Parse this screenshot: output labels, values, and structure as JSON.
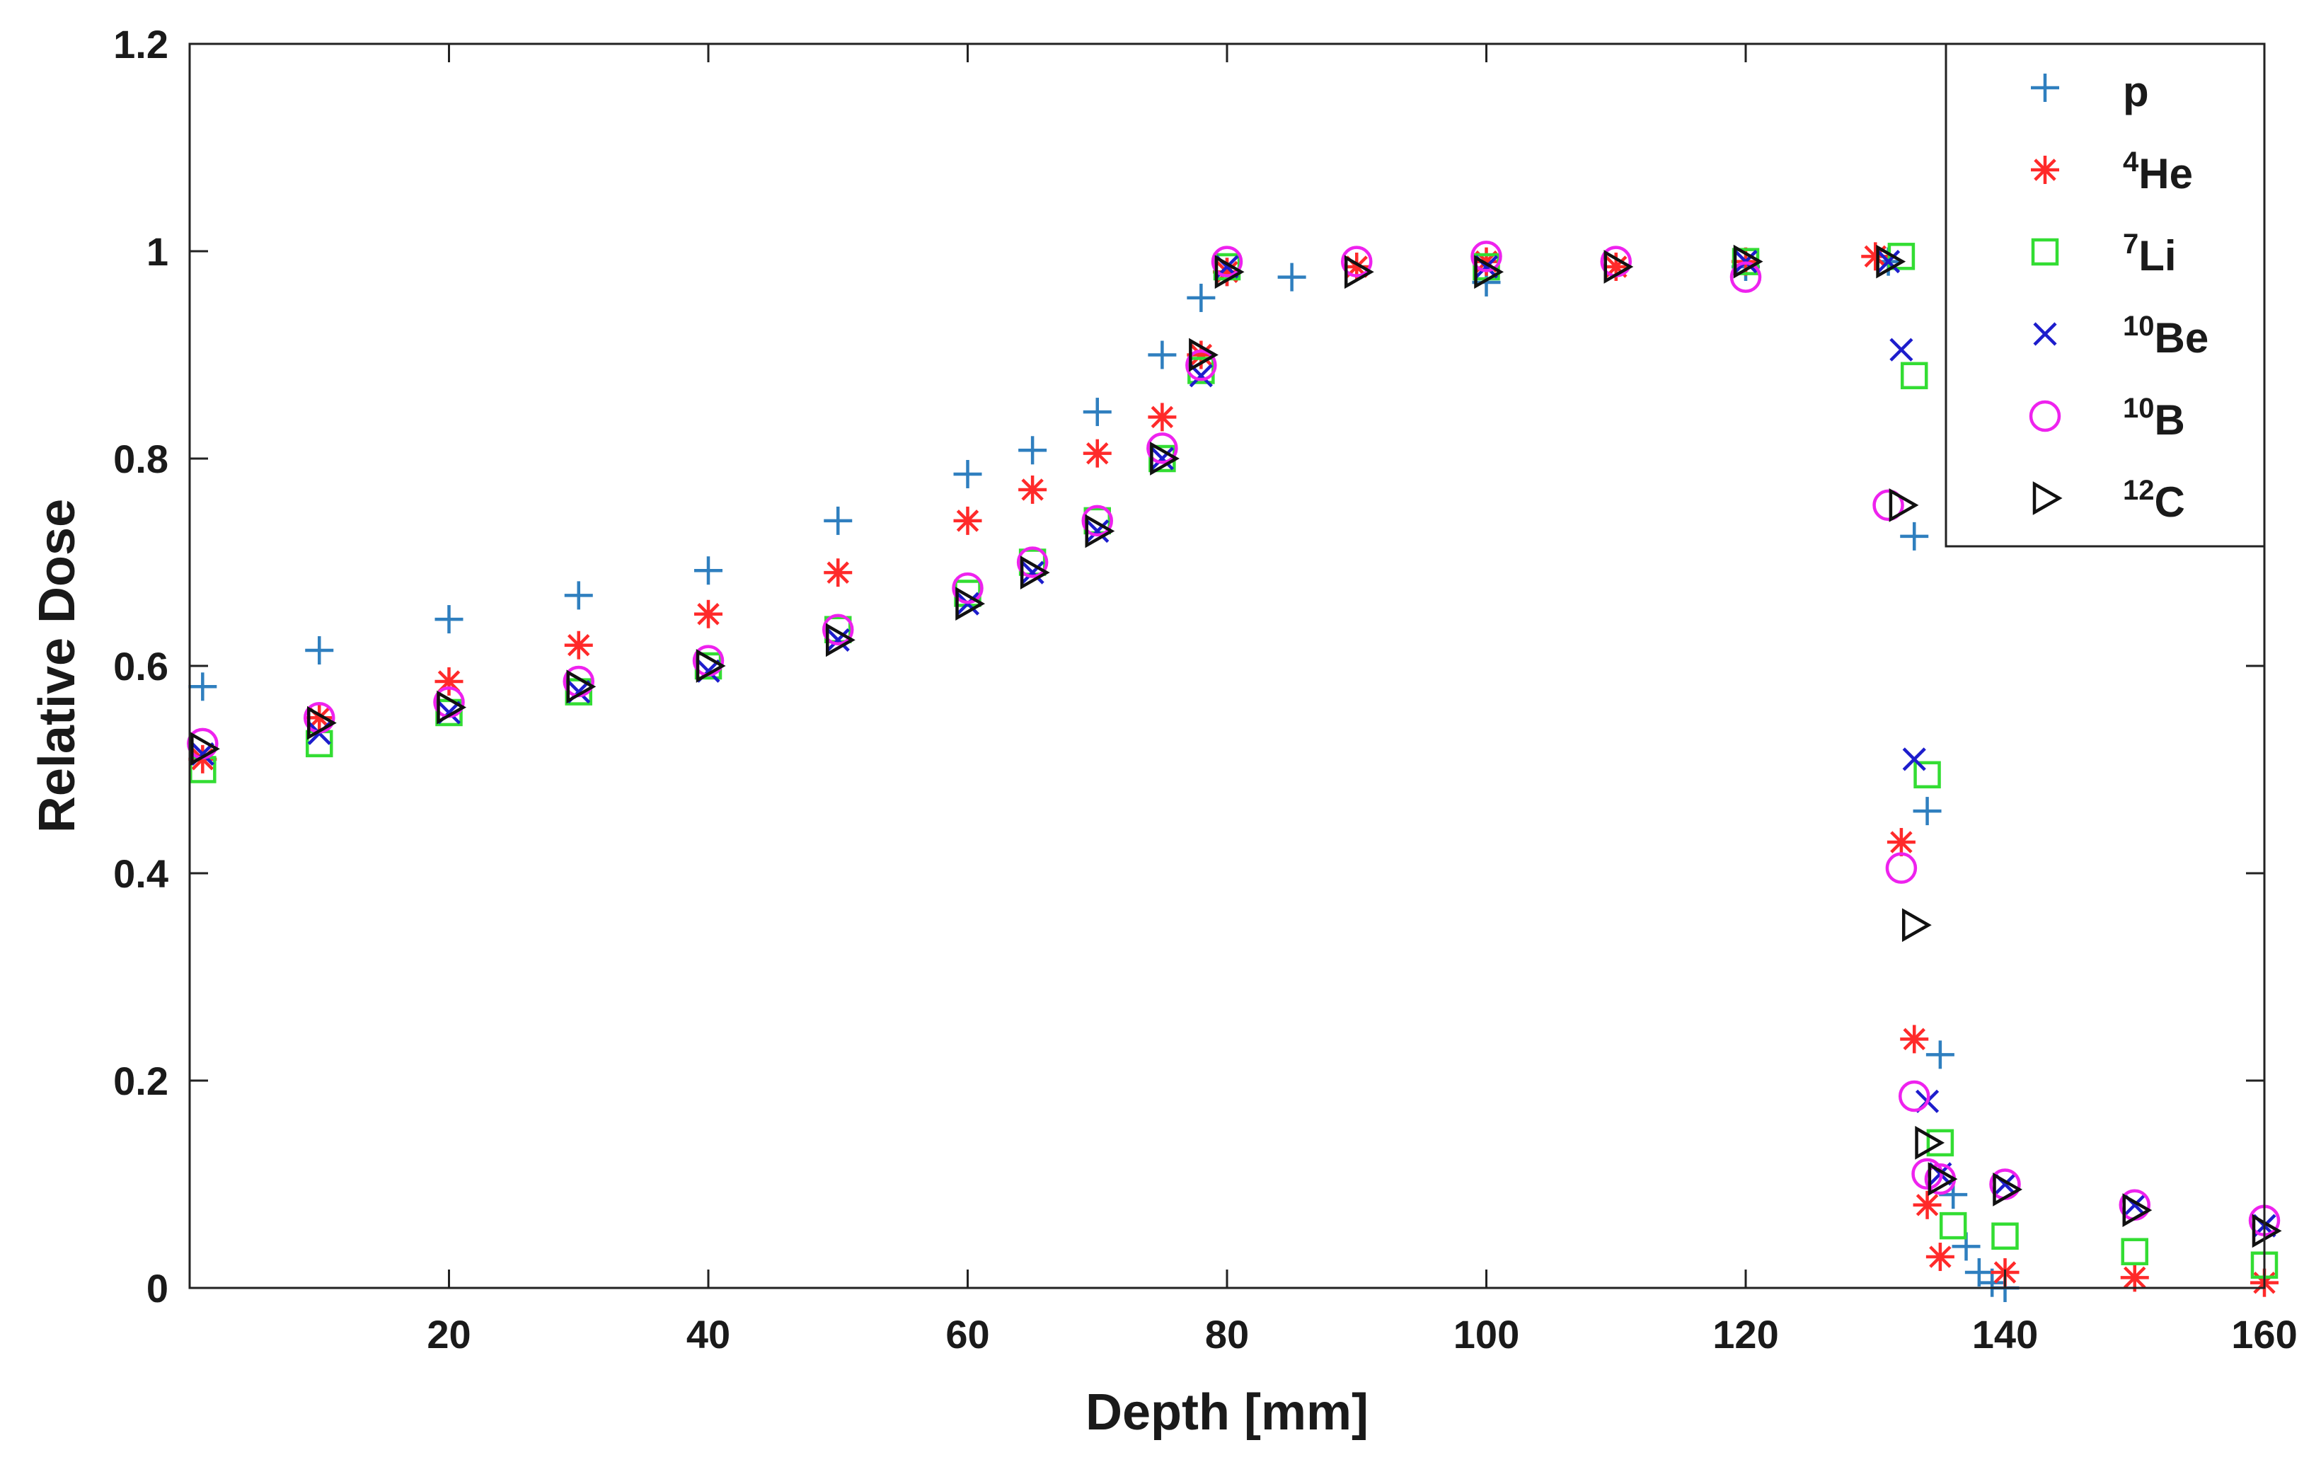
{
  "chart_data": {
    "type": "scatter",
    "title": "",
    "xlabel": "Depth [mm]",
    "ylabel": "Relative Dose",
    "xlim": [
      0,
      160
    ],
    "ylim": [
      0,
      1.2
    ],
    "xticks": [
      20,
      40,
      60,
      80,
      100,
      120,
      140,
      160
    ],
    "xtick_labels": [
      "20",
      "40",
      "60",
      "80",
      "100",
      "120",
      "140",
      "160"
    ],
    "yticks": [
      0,
      0.2,
      0.4,
      0.6,
      0.8,
      1,
      1.2
    ],
    "ytick_labels": [
      "0",
      "0.2",
      "0.4",
      "0.6",
      "0.8",
      "1",
      "1.2"
    ],
    "grid": false,
    "legend_position": "top-right",
    "series": [
      {
        "name": "p",
        "sup": "",
        "label": "p",
        "marker": "plus",
        "color": "#2f7fbf",
        "x": [
          1,
          10,
          20,
          30,
          40,
          50,
          60,
          65,
          70,
          75,
          78,
          80,
          85,
          100,
          120,
          131,
          133,
          134,
          135,
          136,
          137,
          138,
          139,
          140
        ],
        "y": [
          0.58,
          0.615,
          0.645,
          0.668,
          0.692,
          0.74,
          0.785,
          0.808,
          0.845,
          0.9,
          0.955,
          0.98,
          0.975,
          0.97,
          0.985,
          0.99,
          0.725,
          0.46,
          0.225,
          0.09,
          0.04,
          0.015,
          0.005,
          0.0
        ]
      },
      {
        "name": "He",
        "sup": "4",
        "label": "4He",
        "marker": "asterisk",
        "color": "#ff2a2a",
        "x": [
          1,
          10,
          20,
          30,
          40,
          50,
          60,
          65,
          70,
          75,
          78,
          80,
          90,
          100,
          110,
          120,
          130,
          132,
          133,
          134,
          135,
          140,
          150,
          160
        ],
        "y": [
          0.51,
          0.55,
          0.585,
          0.62,
          0.65,
          0.69,
          0.74,
          0.77,
          0.805,
          0.84,
          0.9,
          0.98,
          0.985,
          0.99,
          0.985,
          0.99,
          0.995,
          0.43,
          0.24,
          0.08,
          0.03,
          0.015,
          0.01,
          0.005
        ]
      },
      {
        "name": "Li",
        "sup": "7",
        "label": "7Li",
        "marker": "square",
        "color": "#33dd33",
        "x": [
          1,
          10,
          20,
          30,
          40,
          50,
          60,
          65,
          70,
          75,
          78,
          80,
          100,
          120,
          132,
          133,
          134,
          135,
          136,
          140,
          150,
          160
        ],
        "y": [
          0.5,
          0.525,
          0.555,
          0.575,
          0.6,
          0.635,
          0.67,
          0.7,
          0.74,
          0.8,
          0.885,
          0.985,
          0.985,
          0.99,
          0.995,
          0.88,
          0.495,
          0.14,
          0.06,
          0.05,
          0.035,
          0.022
        ]
      },
      {
        "name": "Be",
        "sup": "10",
        "label": "10Be",
        "marker": "cross",
        "color": "#1d1dcc",
        "x": [
          1,
          10,
          20,
          30,
          40,
          50,
          60,
          65,
          70,
          75,
          78,
          80,
          100,
          120,
          131,
          132,
          133,
          134,
          135,
          140,
          150,
          160
        ],
        "y": [
          0.515,
          0.535,
          0.555,
          0.575,
          0.595,
          0.625,
          0.66,
          0.69,
          0.73,
          0.8,
          0.88,
          0.985,
          0.985,
          0.99,
          0.99,
          0.905,
          0.51,
          0.18,
          0.11,
          0.1,
          0.08,
          0.06
        ]
      },
      {
        "name": "B",
        "sup": "10",
        "label": "10B",
        "marker": "circle",
        "color": "#ee22ee",
        "x": [
          1,
          10,
          20,
          30,
          40,
          50,
          60,
          65,
          70,
          75,
          78,
          80,
          90,
          100,
          110,
          120,
          131,
          132,
          133,
          134,
          135,
          140,
          150,
          160
        ],
        "y": [
          0.525,
          0.55,
          0.565,
          0.585,
          0.605,
          0.635,
          0.675,
          0.7,
          0.74,
          0.81,
          0.89,
          0.99,
          0.99,
          0.995,
          0.99,
          0.975,
          0.755,
          0.405,
          0.185,
          0.11,
          0.105,
          0.1,
          0.08,
          0.065
        ]
      },
      {
        "name": "C",
        "sup": "12",
        "label": "12C",
        "marker": "triangle-right",
        "color": "#111111",
        "x": [
          1,
          10,
          20,
          30,
          40,
          50,
          60,
          65,
          70,
          75,
          78,
          80,
          90,
          100,
          110,
          120,
          131,
          132,
          133,
          134,
          135,
          140,
          150,
          160
        ],
        "y": [
          0.52,
          0.545,
          0.56,
          0.58,
          0.6,
          0.625,
          0.66,
          0.69,
          0.73,
          0.8,
          0.9,
          0.98,
          0.98,
          0.98,
          0.985,
          0.99,
          0.99,
          0.755,
          0.35,
          0.14,
          0.105,
          0.095,
          0.075,
          0.055
        ]
      }
    ]
  }
}
